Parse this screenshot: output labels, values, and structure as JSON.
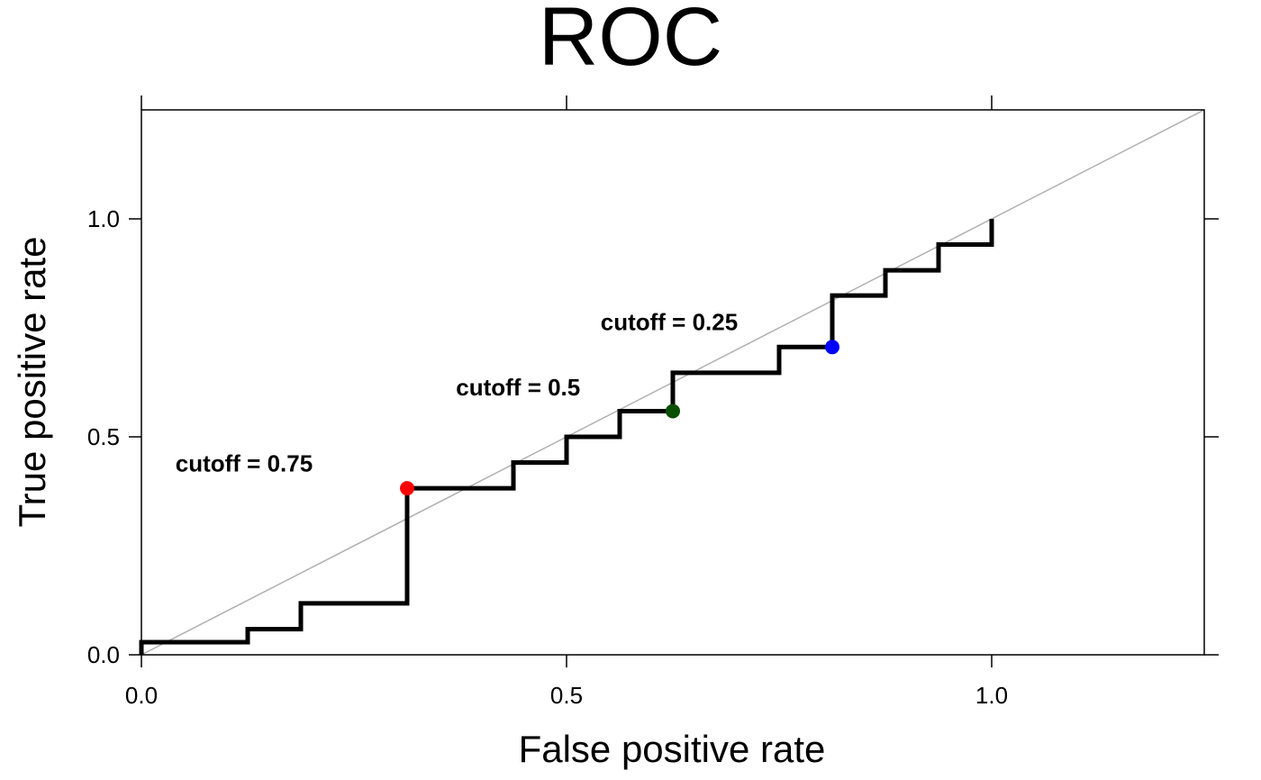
{
  "chart_data": {
    "type": "line",
    "title": "ROC",
    "xlabel": "False positive rate",
    "ylabel": "True positive rate",
    "xlim": [
      0,
      1.25
    ],
    "ylim": [
      0,
      1.25
    ],
    "x_ticks": [
      0.0,
      0.5,
      1.0
    ],
    "y_ticks": [
      0.0,
      0.5,
      1.0
    ],
    "x_tick_labels": [
      "0.0",
      "0.5",
      "1.0"
    ],
    "y_tick_labels": [
      "0.0",
      "0.5",
      "1.0"
    ],
    "grid": false,
    "reference_line": {
      "from": [
        0,
        0
      ],
      "to": [
        1.25,
        1.25
      ],
      "color": "#b0b0b0"
    },
    "series": [
      {
        "color": "#000000",
        "steps": [
          [
            0.0,
            0.0
          ],
          [
            0.0,
            0.029
          ],
          [
            0.125,
            0.029
          ],
          [
            0.125,
            0.059
          ],
          [
            0.1875,
            0.059
          ],
          [
            0.1875,
            0.118
          ],
          [
            0.3125,
            0.118
          ],
          [
            0.3125,
            0.382
          ],
          [
            0.4375,
            0.382
          ],
          [
            0.4375,
            0.441
          ],
          [
            0.5,
            0.441
          ],
          [
            0.5,
            0.5
          ],
          [
            0.5625,
            0.5
          ],
          [
            0.5625,
            0.559
          ],
          [
            0.625,
            0.559
          ],
          [
            0.625,
            0.647
          ],
          [
            0.75,
            0.647
          ],
          [
            0.75,
            0.706
          ],
          [
            0.8125,
            0.706
          ],
          [
            0.8125,
            0.824
          ],
          [
            0.875,
            0.824
          ],
          [
            0.875,
            0.882
          ],
          [
            0.9375,
            0.882
          ],
          [
            0.9375,
            0.941
          ],
          [
            1.0,
            0.941
          ],
          [
            1.0,
            1.0
          ]
        ]
      }
    ],
    "cutoffs": [
      {
        "label": "cutoff = 0.75",
        "x": 0.3125,
        "y": 0.382,
        "color": "#ff0000",
        "label_x": 0.04,
        "label_y": 0.42
      },
      {
        "label": "cutoff = 0.5",
        "x": 0.625,
        "y": 0.559,
        "color": "#0a5000",
        "label_x": 0.37,
        "label_y": 0.595
      },
      {
        "label": "cutoff = 0.25",
        "x": 0.8125,
        "y": 0.706,
        "color": "#0000ff",
        "label_x": 0.54,
        "label_y": 0.745
      }
    ]
  }
}
